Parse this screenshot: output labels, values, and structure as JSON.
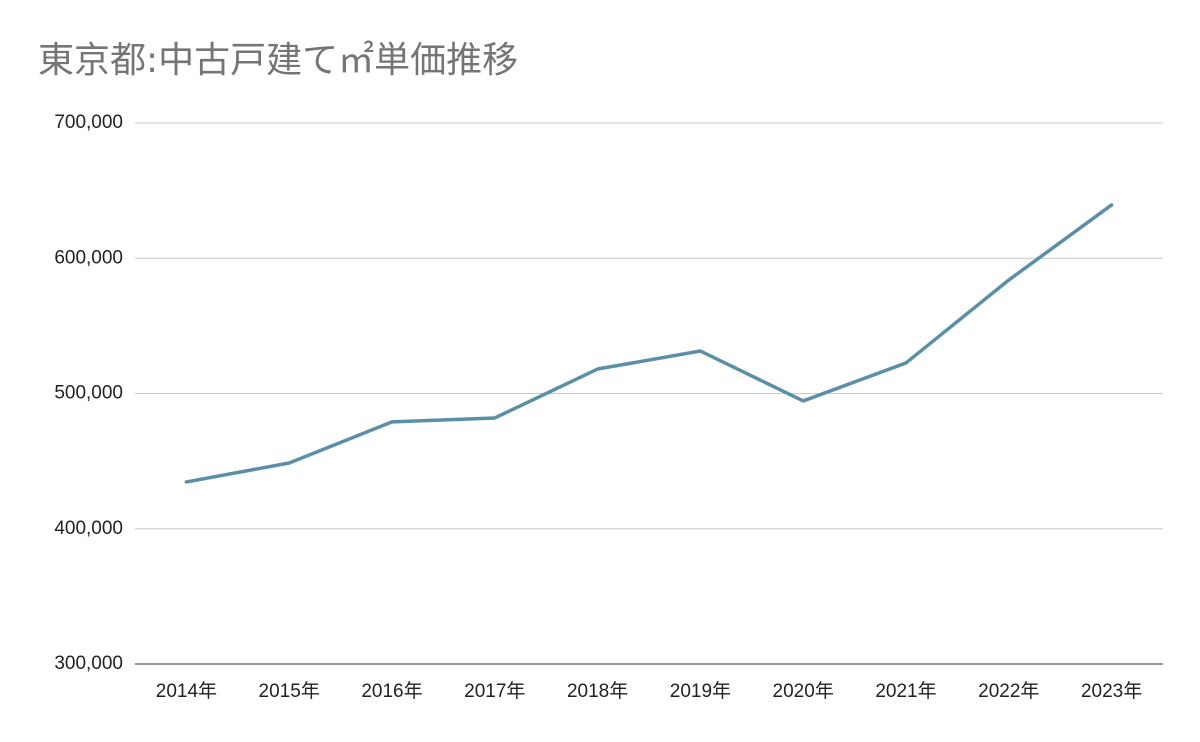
{
  "chart_data": {
    "type": "line",
    "title": "東京都:中古戸建て㎡単価推移",
    "categories": [
      "2014年",
      "2015年",
      "2016年",
      "2017年",
      "2018年",
      "2019年",
      "2020年",
      "2021年",
      "2022年",
      "2023年"
    ],
    "series": [
      {
        "name": "㎡単価",
        "color": "#5b8fa8",
        "values": [
          434600,
          448600,
          479000,
          481900,
          518100,
          531400,
          494500,
          522600,
          583900,
          639400
        ]
      }
    ],
    "ylim": [
      300000,
      700000
    ],
    "yticks": [
      {
        "value": 300000,
        "label": "300,000"
      },
      {
        "value": 400000,
        "label": "400,000"
      },
      {
        "value": 500000,
        "label": "500,000"
      },
      {
        "value": 600000,
        "label": "600,000"
      },
      {
        "value": 700000,
        "label": "700,000"
      }
    ],
    "grid": true
  }
}
